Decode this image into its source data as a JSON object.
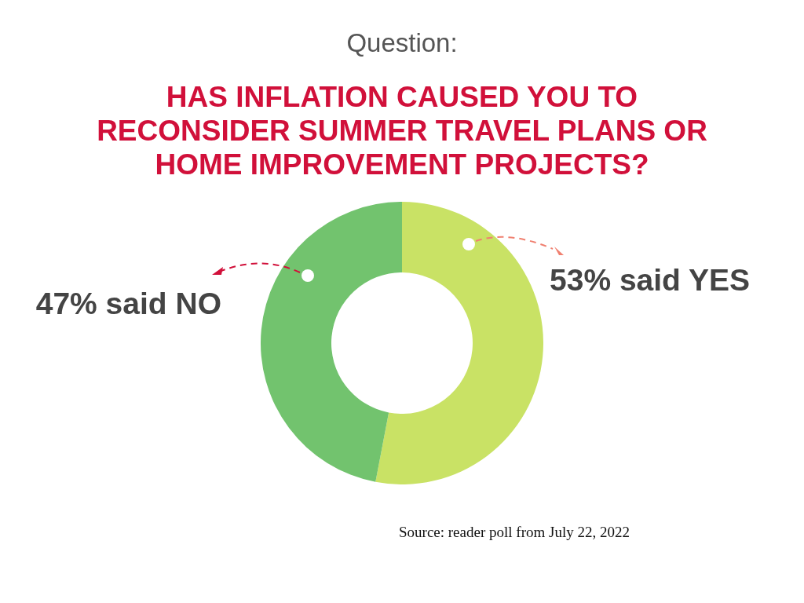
{
  "chart_data": {
    "type": "donut",
    "subtitle": "Question:",
    "title": "HAS INFLATION CAUSED YOU TO RECONSIDER SUMMER TRAVEL PLANS OR HOME IMPROVEMENT PROJECTS?",
    "categories": [
      "53% said YES",
      "47% said NO"
    ],
    "values": [
      53,
      47
    ],
    "colors": [
      "#c9e265",
      "#72c36e"
    ],
    "legend": false,
    "annotations": [
      "Source: reader poll from July 22, 2022"
    ]
  }
}
